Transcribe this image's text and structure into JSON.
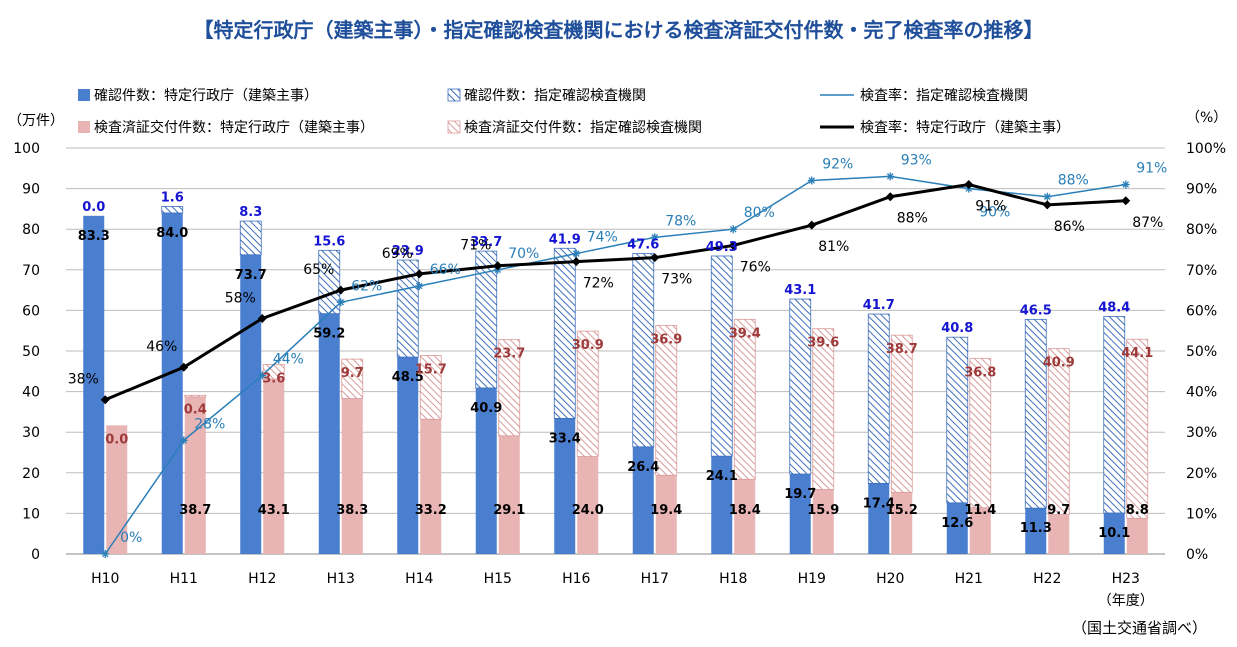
{
  "title": "【特定行政庁（建築主事）・指定確認検査機関における検査済証交付件数・完了検査率の推移】",
  "source_note": "（国土交通省調べ）",
  "colors": {
    "kakunin_tokutei": "#4a7fd0",
    "kakunin_shitei": "#3e6fbd",
    "kensa_tokutei": "#e8b4b4",
    "kensa_shitei": "#d99a9a",
    "rate_shitei": "#2a7fb8",
    "rate_tokutei": "#000000",
    "label_blue": "#1414d2",
    "label_red": "#9e3a3a"
  },
  "chart_data": {
    "type": "bar",
    "xlabel": "（年度）",
    "ylabel_left": "（万件）",
    "ylabel_right": "（%）",
    "ylim_left": [
      0,
      100
    ],
    "ylim_right": [
      0,
      100
    ],
    "y_ticks_left": [
      "0",
      "10",
      "20",
      "30",
      "40",
      "50",
      "60",
      "70",
      "80",
      "90",
      "100"
    ],
    "y_ticks_right": [
      "0%",
      "10%",
      "20%",
      "30%",
      "40%",
      "50%",
      "60%",
      "70%",
      "80%",
      "90%",
      "100%"
    ],
    "grid": true,
    "categories": [
      "H10",
      "H11",
      "H12",
      "H13",
      "H14",
      "H15",
      "H16",
      "H17",
      "H18",
      "H19",
      "H20",
      "H21",
      "H22",
      "H23"
    ],
    "series": [
      {
        "name": "確認件数：特定行政庁（建築主事）",
        "kind": "bar",
        "stack": "kakunin",
        "values": [
          83.3,
          84.0,
          73.7,
          59.2,
          48.5,
          40.9,
          33.4,
          26.4,
          24.1,
          19.7,
          17.4,
          12.6,
          11.3,
          10.1
        ]
      },
      {
        "name": "確認件数：指定確認検査機関",
        "kind": "bar",
        "stack": "kakunin",
        "values": [
          0.0,
          1.6,
          8.3,
          15.6,
          23.9,
          33.7,
          41.9,
          47.6,
          49.3,
          43.1,
          41.7,
          40.8,
          46.5,
          48.4
        ]
      },
      {
        "name": "検査済証交付件数：特定行政庁（建築主事）",
        "kind": "bar",
        "stack": "kensa",
        "values": [
          31.7,
          38.7,
          43.1,
          38.3,
          33.2,
          29.1,
          24.0,
          19.4,
          18.4,
          15.9,
          15.2,
          11.4,
          9.7,
          8.8
        ]
      },
      {
        "name": "検査済証交付件数：指定確認検査機関",
        "kind": "bar",
        "stack": "kensa",
        "values": [
          0.0,
          0.4,
          3.6,
          9.7,
          15.7,
          23.7,
          30.9,
          36.9,
          39.4,
          39.6,
          38.7,
          36.8,
          40.9,
          44.1
        ]
      },
      {
        "name": "検査率：指定確認検査機関",
        "kind": "line",
        "axis": "right",
        "values": [
          0,
          28,
          44,
          62,
          66,
          70,
          74,
          78,
          80,
          92,
          93,
          90,
          88,
          91
        ]
      },
      {
        "name": "検査率：特定行政庁（建築主事）",
        "kind": "line",
        "axis": "right",
        "values": [
          38,
          46,
          58,
          65,
          69,
          71,
          72,
          73,
          76,
          81,
          88,
          91,
          86,
          87
        ]
      }
    ],
    "bar_labels": {
      "kakunin_tokutei": [
        "83.3",
        "84.0",
        "73.7",
        "59.2",
        "48.5",
        "40.9",
        "33.4",
        "26.4",
        "24.1",
        "19.7",
        "17.4",
        "12.6",
        "11.3",
        "10.1"
      ],
      "kakunin_shitei": [
        "0.0",
        "1.6",
        "8.3",
        "15.6",
        "23.9",
        "33.7",
        "41.9",
        "47.6",
        "49.3",
        "43.1",
        "41.7",
        "40.8",
        "46.5",
        "48.4"
      ],
      "kensa_tokutei": [
        "",
        "38.7",
        "43.1",
        "38.3",
        "33.2",
        "29.1",
        "24.0",
        "19.4",
        "18.4",
        "15.9",
        "15.2",
        "11.4",
        "9.7",
        "8.8"
      ],
      "kensa_shitei": [
        "0.0",
        "0.4",
        "3.6",
        "9.7",
        "15.7",
        "23.7",
        "30.9",
        "36.9",
        "39.4",
        "39.6",
        "38.7",
        "36.8",
        "40.9",
        "44.1"
      ],
      "rate_shitei": [
        "0%",
        "28%",
        "44%",
        "62%",
        "66%",
        "70%",
        "74%",
        "78%",
        "80%",
        "92%",
        "93%",
        "90%",
        "88%",
        "91%"
      ],
      "rate_tokutei": [
        "38%",
        "46%",
        "58%",
        "65%",
        "69%",
        "71%",
        "72%",
        "73%",
        "76%",
        "81%",
        "88%",
        "91%",
        "86%",
        "87%"
      ]
    },
    "legend": {
      "placement": "top",
      "items": [
        "確認件数：特定行政庁（建築主事）",
        "確認件数：指定確認検査機関",
        "検査率：指定確認検査機関",
        "検査済証交付件数：特定行政庁（建築主事）",
        "検査済証交付件数：指定確認検査機関",
        "検査率：特定行政庁（建築主事）"
      ]
    }
  }
}
